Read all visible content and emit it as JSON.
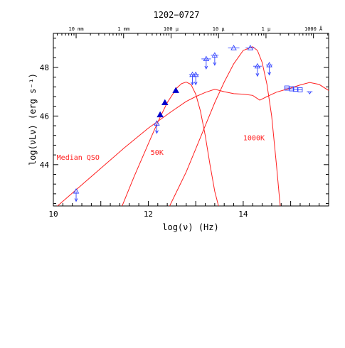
{
  "chart_data": {
    "type": "scatter",
    "title": "1202−0727",
    "xlabel": "log(ν)  (Hz)",
    "ylabel": "log(νLν)  (erg s⁻¹)",
    "xlim": [
      10.0,
      15.8
    ],
    "ylim": [
      42.3,
      49.4
    ],
    "x_ticks": [
      10,
      12,
      14
    ],
    "y_ticks": [
      44,
      46,
      48
    ],
    "top_axis_labels": [
      {
        "label": "10 mm",
        "log_nu": 10.48
      },
      {
        "label": "1 mm",
        "log_nu": 11.48
      },
      {
        "label": "100 μ",
        "log_nu": 12.48
      },
      {
        "label": "10 μ",
        "log_nu": 13.48
      },
      {
        "label": "1 μ",
        "log_nu": 14.48
      },
      {
        "label": "1000 Å",
        "log_nu": 15.48
      }
    ],
    "colors": {
      "model": "#ff2020",
      "data": "#3344ff",
      "detection": "#0000cc",
      "frame": "#000000"
    },
    "curves": [
      {
        "label": "Median QSO",
        "label_pos": [
          10.07,
          44.2
        ],
        "x": [
          10.0,
          10.5,
          11.0,
          11.5,
          12.0,
          12.5,
          12.8,
          13.0,
          13.2,
          13.4,
          13.6,
          13.8,
          14.0,
          14.2,
          14.35,
          14.5,
          14.7,
          15.0,
          15.2,
          15.4,
          15.6,
          15.8
        ],
        "y": [
          42.15,
          43.0,
          43.85,
          44.7,
          45.5,
          46.2,
          46.6,
          46.8,
          46.97,
          47.1,
          47.0,
          46.92,
          46.9,
          46.85,
          46.65,
          46.8,
          46.98,
          47.15,
          47.28,
          47.38,
          47.3,
          47.05
        ]
      },
      {
        "label": "50K",
        "label_pos": [
          12.05,
          44.4
        ],
        "x": [
          11.45,
          11.7,
          12.0,
          12.2,
          12.4,
          12.6,
          12.7,
          12.8,
          12.9,
          13.0,
          13.1,
          13.2,
          13.3,
          13.4,
          13.48
        ],
        "y": [
          42.3,
          43.5,
          44.85,
          45.75,
          46.55,
          47.15,
          47.33,
          47.4,
          47.3,
          46.9,
          46.2,
          45.2,
          44.0,
          42.9,
          42.3
        ]
      },
      {
        "label": "1000K",
        "label_pos": [
          14.0,
          45.0
        ],
        "x": [
          12.45,
          12.8,
          13.0,
          13.2,
          13.4,
          13.6,
          13.8,
          14.0,
          14.2,
          14.3,
          14.4,
          14.5,
          14.6,
          14.7,
          14.78
        ],
        "y": [
          42.3,
          43.7,
          44.65,
          45.6,
          46.55,
          47.4,
          48.15,
          48.7,
          48.85,
          48.7,
          48.2,
          47.3,
          46.0,
          44.0,
          42.3
        ]
      }
    ],
    "detections": [
      {
        "x": 12.25,
        "y": 46.05
      },
      {
        "x": 12.35,
        "y": 46.55
      },
      {
        "x": 12.58,
        "y": 47.05
      }
    ],
    "upper_limits": [
      {
        "x": 10.48,
        "y": 42.9,
        "xerr": 0,
        "symbol": "triangle"
      },
      {
        "x": 12.18,
        "y": 45.7,
        "xerr": 0,
        "symbol": "triangle"
      },
      {
        "x": 12.93,
        "y": 47.7,
        "xerr": 0.07,
        "symbol": "triangle"
      },
      {
        "x": 13.0,
        "y": 47.7,
        "xerr": 0.07,
        "symbol": "triangle"
      },
      {
        "x": 13.22,
        "y": 48.35,
        "xerr": 0.1,
        "symbol": "triangle"
      },
      {
        "x": 13.4,
        "y": 48.5,
        "xerr": 0.08,
        "symbol": "triangle"
      },
      {
        "x": 14.3,
        "y": 48.05,
        "xerr": 0.09,
        "symbol": "triangle"
      },
      {
        "x": 14.55,
        "y": 48.1,
        "xerr": 0.07,
        "symbol": "triangle"
      }
    ],
    "upper_limits_short": [
      {
        "x": 15.4,
        "y": 47.0,
        "symbol": "triangle"
      }
    ],
    "flat_points": [
      {
        "x": 13.8,
        "y": 48.8,
        "xerr": 0.12,
        "symbol": "triangle"
      },
      {
        "x": 14.15,
        "y": 48.8,
        "xerr": 0.1,
        "symbol": "triangle"
      },
      {
        "x": 14.92,
        "y": 47.15,
        "xerr": 0.05,
        "symbol": "square"
      },
      {
        "x": 15.02,
        "y": 47.12,
        "xerr": 0.05,
        "symbol": "square"
      },
      {
        "x": 15.1,
        "y": 47.1,
        "xerr": 0.05,
        "symbol": "square"
      },
      {
        "x": 15.2,
        "y": 47.08,
        "xerr": 0.04,
        "symbol": "square"
      }
    ]
  }
}
